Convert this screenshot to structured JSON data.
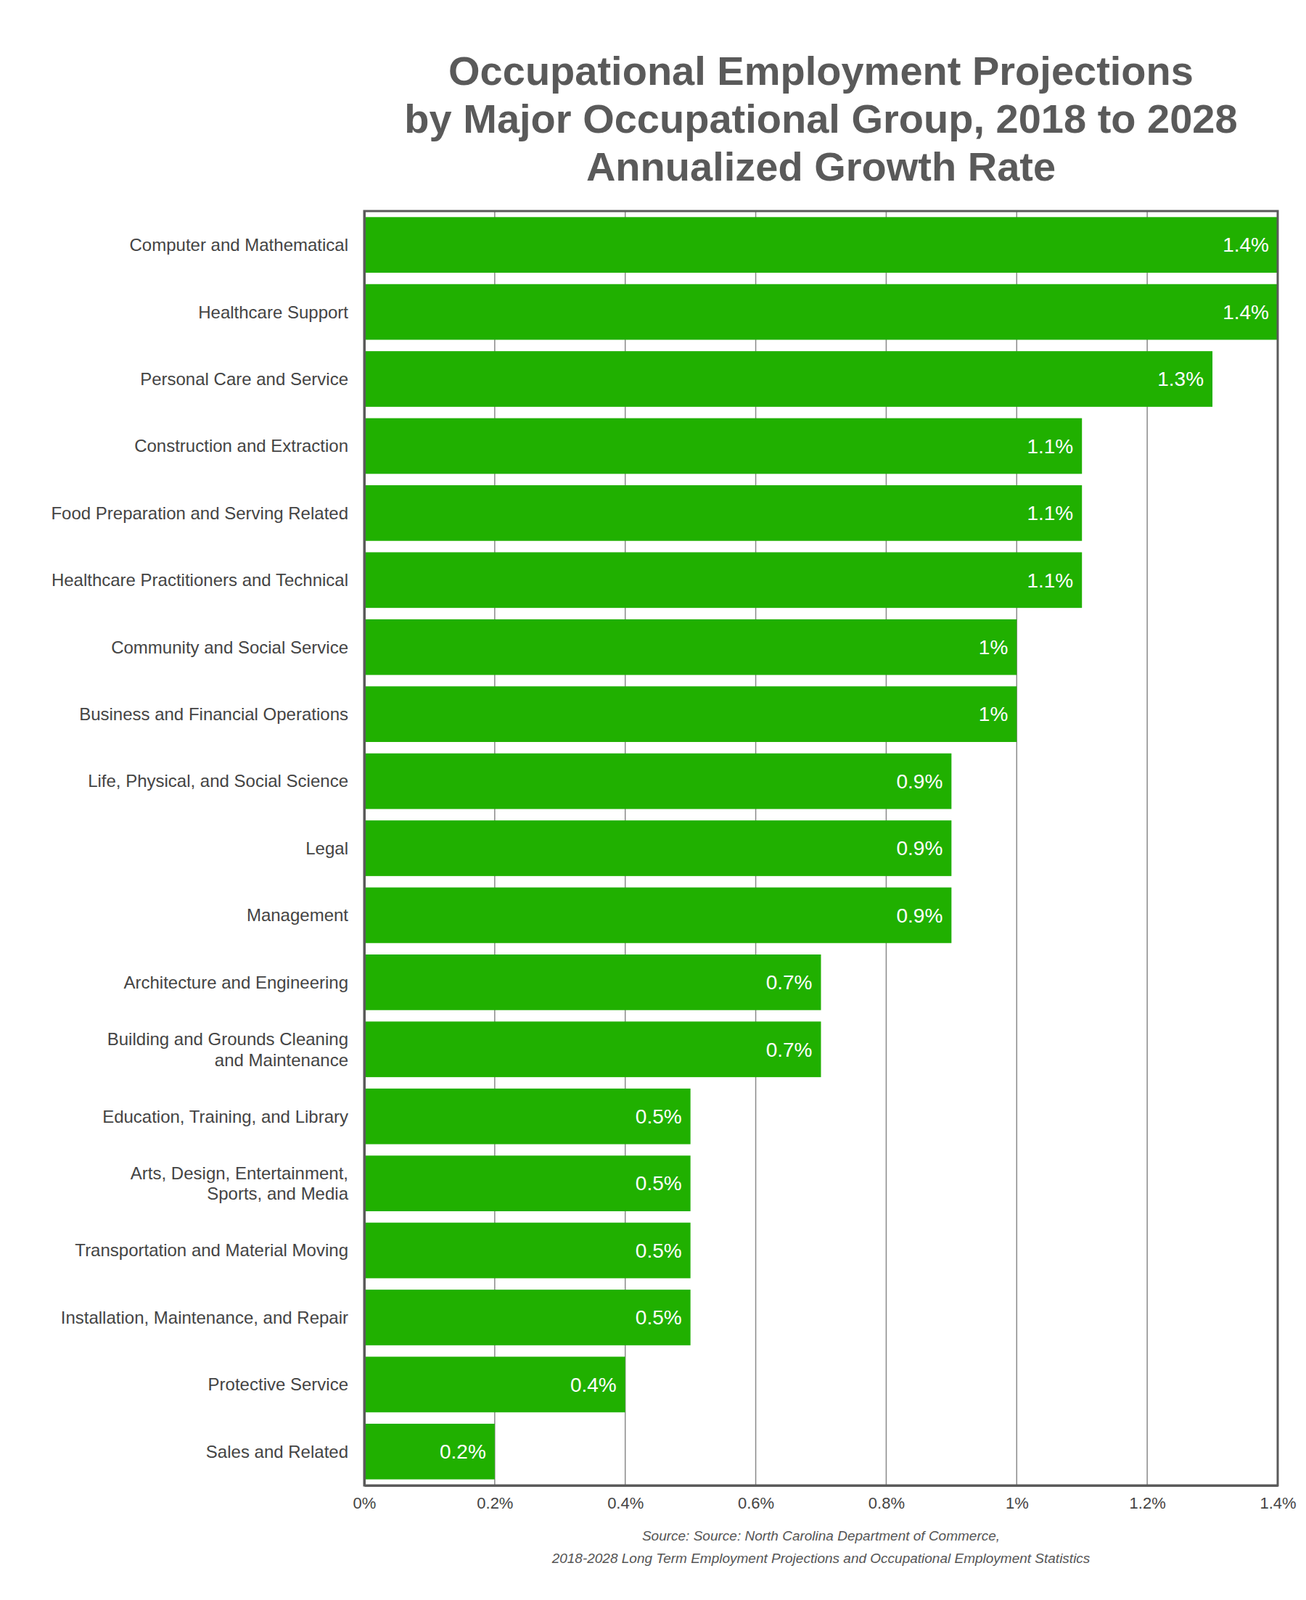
{
  "chart_data": {
    "type": "bar",
    "title": "Occupational Employment Projections\nby Major Occupational Group, 2018 to 2028\nAnnualized Growth Rate",
    "source": "Source: Source: North Carolina Department of Commerce,\n2018-2028 Long Term Employment Projections and Occupational Employment Statistics",
    "orientation": "horizontal",
    "categories": [
      "Computer and Mathematical",
      "Healthcare Support",
      "Personal Care and Service",
      "Construction and Extraction",
      "Food Preparation and Serving Related",
      "Healthcare Practitioners and Technical",
      "Community and Social Service",
      "Business and Financial Operations",
      "Life, Physical, and Social Science",
      "Legal",
      "Management",
      "Architecture and Engineering",
      "Building and Grounds Cleaning\nand Maintenance",
      "Education, Training, and Library",
      "Arts, Design, Entertainment,\nSports, and Media",
      "Transportation and Material Moving",
      "Installation, Maintenance, and Repair",
      "Protective Service",
      "Sales and Related"
    ],
    "values": [
      1.4,
      1.4,
      1.3,
      1.1,
      1.1,
      1.1,
      1,
      1,
      0.9,
      0.9,
      0.9,
      0.7,
      0.7,
      0.5,
      0.5,
      0.5,
      0.5,
      0.4,
      0.2
    ],
    "value_labels": [
      "1.4%",
      "1.4%",
      "1.3%",
      "1.1%",
      "1.1%",
      "1.1%",
      "1%",
      "1%",
      "0.9%",
      "0.9%",
      "0.9%",
      "0.7%",
      "0.7%",
      "0.5%",
      "0.5%",
      "0.5%",
      "0.5%",
      "0.4%",
      "0.2%"
    ],
    "color": "#20b000",
    "data_labels": true,
    "xlim": [
      0,
      1.4
    ],
    "xticks": [
      {
        "value": 0,
        "label": "0%"
      },
      {
        "value": 0.2,
        "label": "0.2%"
      },
      {
        "value": 0.4,
        "label": "0.4%"
      },
      {
        "value": 0.6,
        "label": "0.6%"
      },
      {
        "value": 0.8,
        "label": "0.8%"
      },
      {
        "value": 1,
        "label": "1%"
      },
      {
        "value": 1.2,
        "label": "1.2%"
      },
      {
        "value": 1.4,
        "label": "1.4%"
      }
    ],
    "grid": true
  }
}
